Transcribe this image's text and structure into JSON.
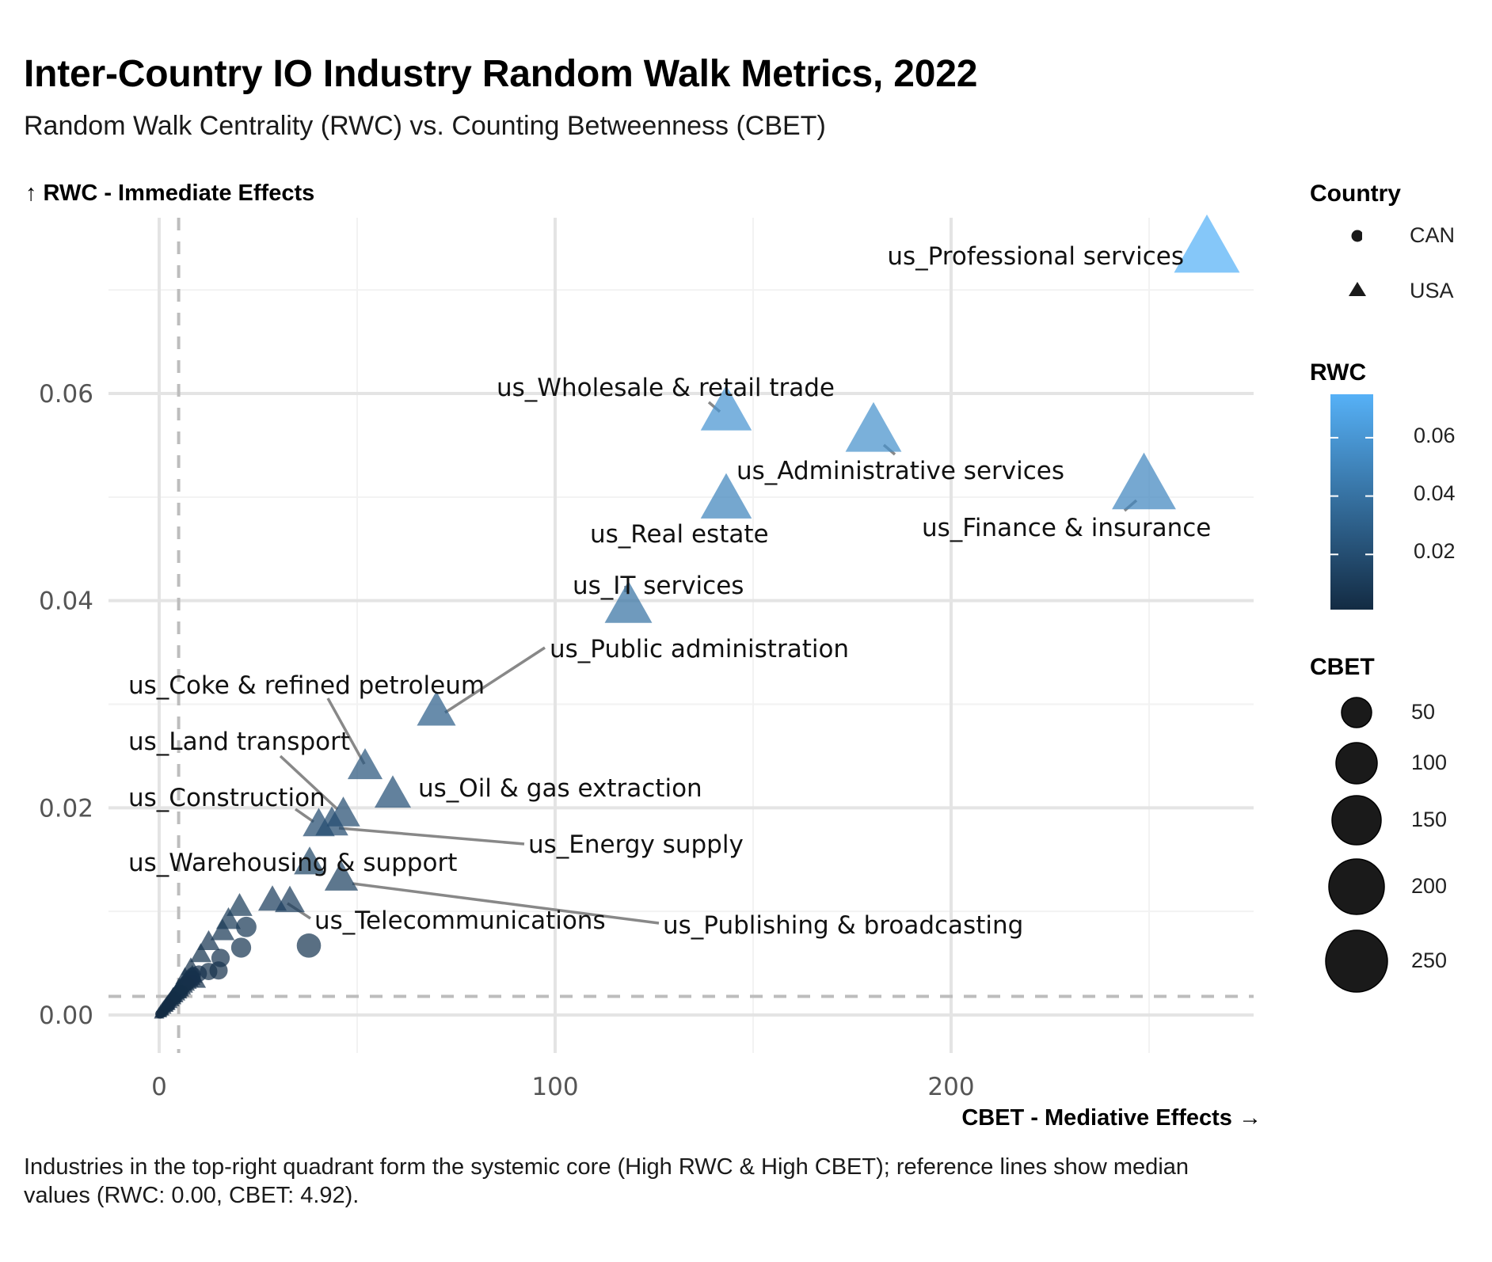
{
  "title": "Inter-Country IO Industry Random Walk Metrics, 2022",
  "subtitle": "Random Walk Centrality (RWC) vs. Counting Betweenness (CBET)",
  "caption": "Industries in the top-right quadrant form the systemic core (High RWC & High CBET); reference lines show median values (RWC: 0.00, CBET: 4.92).",
  "legend": {
    "country_title": "Country",
    "country_items": [
      {
        "label": "CAN",
        "shape": "circle"
      },
      {
        "label": "USA",
        "shape": "triangle"
      }
    ],
    "rwc_title": "RWC",
    "rwc_ticks": [
      "0.06",
      "0.04",
      "0.02"
    ],
    "rwc_low_color": "#132B43",
    "rwc_high_color": "#56B1F7",
    "cbet_title": "CBET",
    "cbet_items": [
      "50",
      "100",
      "150",
      "200",
      "250"
    ]
  },
  "chart_data": {
    "type": "scatter",
    "title": "Inter-Country IO Industry Random Walk Metrics, 2022",
    "subtitle": "Random Walk Centrality (RWC) vs. Counting Betweenness (CBET)",
    "xlabel": "CBET - Mediative Effects →",
    "ylabel": "↑ RWC - Immediate Effects",
    "xlim": [
      -12.8,
      276
    ],
    "ylim": [
      -0.0037,
      0.0768
    ],
    "xticks": [
      0,
      100,
      200
    ],
    "xtick_labels": [
      "0",
      "100",
      "200"
    ],
    "yticks": [
      0,
      0.02,
      0.04,
      0.06
    ],
    "ytick_labels": [
      "0.00",
      "0.02",
      "0.04",
      "0.06"
    ],
    "grid": true,
    "reference_lines": {
      "rwc_median": 0.0018,
      "cbet_median": 4.92
    },
    "legend_position": "right",
    "color_encoding": "RWC",
    "size_encoding": "CBET",
    "shape_encoding": "Country",
    "labeled_points": [
      {
        "label": "us_Professional services",
        "country": "USA",
        "cbet": 264.6,
        "rwc": 0.0738
      },
      {
        "label": "us_Wholesale & retail trade",
        "country": "USA",
        "cbet": 143.2,
        "rwc": 0.0581
      },
      {
        "label": "us_Administrative services",
        "country": "USA",
        "cbet": 180.4,
        "rwc": 0.0562
      },
      {
        "label": "us_Finance & insurance",
        "country": "USA",
        "cbet": 248.7,
        "rwc": 0.0509
      },
      {
        "label": "us_Real estate",
        "country": "USA",
        "cbet": 143.2,
        "rwc": 0.0496
      },
      {
        "label": "us_IT services",
        "country": "USA",
        "cbet": 118.5,
        "rwc": 0.0394
      },
      {
        "label": "us_Public administration",
        "country": "USA",
        "cbet": 70.0,
        "rwc": 0.0292
      },
      {
        "label": "us_Coke & refined petroleum",
        "country": "USA",
        "cbet": 52.0,
        "rwc": 0.0239
      },
      {
        "label": "us_Oil & gas extraction",
        "country": "USA",
        "cbet": 59.0,
        "rwc": 0.0212
      },
      {
        "label": "us_Land transport",
        "country": "USA",
        "cbet": 46.5,
        "rwc": 0.0193
      },
      {
        "label": "us_Energy supply",
        "country": "USA",
        "cbet": 43.6,
        "rwc": 0.0184
      },
      {
        "label": "us_Construction",
        "country": "USA",
        "cbet": 40.3,
        "rwc": 0.0183
      },
      {
        "label": "us_Warehousing & support",
        "country": "USA",
        "cbet": 38.0,
        "rwc": 0.0146
      },
      {
        "label": "us_Publishing & broadcasting",
        "country": "USA",
        "cbet": 46.0,
        "rwc": 0.0131
      },
      {
        "label": "us_Telecommunications",
        "country": "USA",
        "cbet": 33.0,
        "rwc": 0.0109
      }
    ],
    "unlabeled_points": [
      {
        "country": "USA",
        "cbet": 28.6,
        "rwc": 0.011
      },
      {
        "country": "USA",
        "cbet": 20.3,
        "rwc": 0.0104
      },
      {
        "country": "USA",
        "cbet": 17.5,
        "rwc": 0.0091
      },
      {
        "country": "USA",
        "cbet": 16.0,
        "rwc": 0.008
      },
      {
        "country": "USA",
        "cbet": 12.5,
        "rwc": 0.007
      },
      {
        "country": "USA",
        "cbet": 10.5,
        "rwc": 0.0058
      },
      {
        "country": "USA",
        "cbet": 9.2,
        "rwc": 0.0033
      },
      {
        "country": "USA",
        "cbet": 8.0,
        "rwc": 0.0045
      },
      {
        "country": "USA",
        "cbet": 6.5,
        "rwc": 0.0036
      },
      {
        "country": "USA",
        "cbet": 5.0,
        "rwc": 0.0026
      },
      {
        "country": "USA",
        "cbet": 3.5,
        "rwc": 0.0018
      },
      {
        "country": "USA",
        "cbet": 2.0,
        "rwc": 0.001
      },
      {
        "country": "CAN",
        "cbet": 37.8,
        "rwc": 0.0067
      },
      {
        "country": "CAN",
        "cbet": 22.0,
        "rwc": 0.0085
      },
      {
        "country": "CAN",
        "cbet": 20.7,
        "rwc": 0.0065
      },
      {
        "country": "CAN",
        "cbet": 15.5,
        "rwc": 0.0055
      },
      {
        "country": "CAN",
        "cbet": 15.0,
        "rwc": 0.0043
      },
      {
        "country": "CAN",
        "cbet": 12.5,
        "rwc": 0.0042
      },
      {
        "country": "CAN",
        "cbet": 10.0,
        "rwc": 0.004
      },
      {
        "country": "CAN",
        "cbet": 8.5,
        "rwc": 0.0035
      },
      {
        "country": "CAN",
        "cbet": 7.0,
        "rwc": 0.003
      },
      {
        "country": "CAN",
        "cbet": 5.5,
        "rwc": 0.0022
      },
      {
        "country": "CAN",
        "cbet": 4.0,
        "rwc": 0.0016
      },
      {
        "country": "CAN",
        "cbet": 2.5,
        "rwc": 0.0009
      },
      {
        "country": "CAN",
        "cbet": 1.0,
        "rwc": 0.0003
      },
      {
        "country": "CAN",
        "cbet": 0.2,
        "rwc": 0.0001
      }
    ]
  }
}
